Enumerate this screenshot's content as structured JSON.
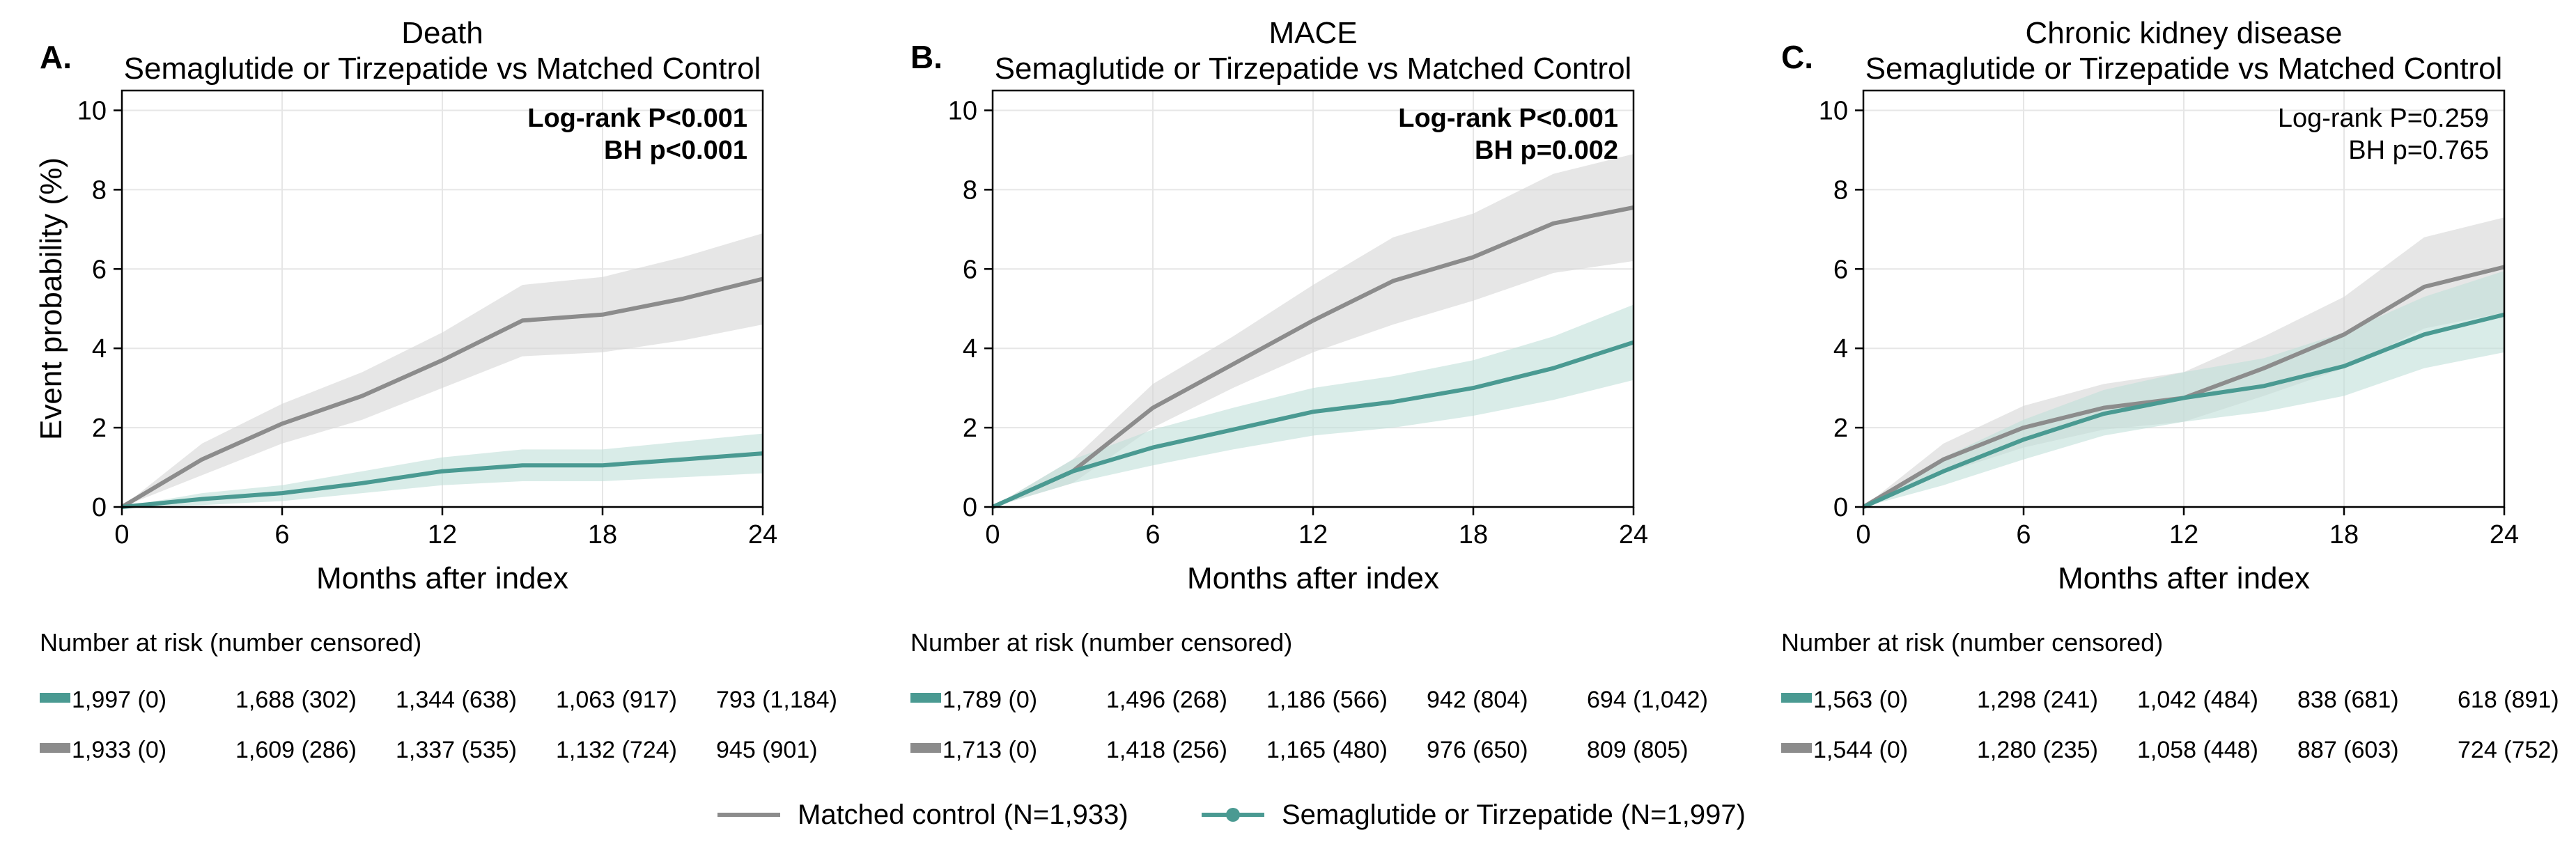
{
  "colors": {
    "control": "#8c8c8c",
    "control_band": "#d6d6d6",
    "treatment": "#4a9a92",
    "treatment_band": "#bfe0d9",
    "grid": "#e6e6e6"
  },
  "chart_data": [
    {
      "type": "line",
      "panel_letter": "A.",
      "title": "Death",
      "subtitle": "Semaglutide or Tirzepatide vs Matched Control",
      "xlabel": "Months after index",
      "ylabel": "Event probability (%)",
      "xlim": [
        0,
        24
      ],
      "ylim": [
        0,
        10.5
      ],
      "xticks": [
        0,
        6,
        12,
        18,
        24
      ],
      "yticks": [
        0,
        2,
        4,
        6,
        8,
        10
      ],
      "grid": true,
      "stats": [
        "Log-rank P<0.001",
        "BH p<0.001"
      ],
      "stats_bold": true,
      "series": [
        {
          "key": "control",
          "x": [
            0,
            3,
            6,
            9,
            12,
            15,
            18,
            21,
            24
          ],
          "y": [
            0,
            1.2,
            2.1,
            2.8,
            3.7,
            4.7,
            4.85,
            5.25,
            5.75
          ],
          "lower": [
            0,
            0.8,
            1.6,
            2.2,
            3.0,
            3.8,
            3.9,
            4.2,
            4.6
          ],
          "upper": [
            0,
            1.6,
            2.6,
            3.4,
            4.4,
            5.6,
            5.8,
            6.3,
            6.9
          ]
        },
        {
          "key": "treatment",
          "x": [
            0,
            3,
            6,
            9,
            12,
            15,
            18,
            21,
            24
          ],
          "y": [
            0,
            0.2,
            0.35,
            0.6,
            0.9,
            1.05,
            1.05,
            1.2,
            1.35
          ],
          "lower": [
            0,
            0.05,
            0.15,
            0.35,
            0.55,
            0.65,
            0.65,
            0.75,
            0.85
          ],
          "upper": [
            0,
            0.35,
            0.55,
            0.9,
            1.25,
            1.45,
            1.45,
            1.65,
            1.85
          ]
        }
      ],
      "risk_header": "Number at risk (number censored)",
      "risk_rows": [
        {
          "key": "treatment",
          "values": [
            "1,997 (0)",
            "1,688 (302)",
            "1,344 (638)",
            "1,063 (917)",
            "793 (1,184)"
          ]
        },
        {
          "key": "control",
          "values": [
            "1,933 (0)",
            "1,609 (286)",
            "1,337 (535)",
            "1,132 (724)",
            "945 (901)"
          ]
        }
      ]
    },
    {
      "type": "line",
      "panel_letter": "B.",
      "title": "MACE",
      "subtitle": "Semaglutide or Tirzepatide vs Matched Control",
      "xlabel": "Months after index",
      "ylabel": "",
      "xlim": [
        0,
        24
      ],
      "ylim": [
        0,
        10.5
      ],
      "xticks": [
        0,
        6,
        12,
        18,
        24
      ],
      "yticks": [
        0,
        2,
        4,
        6,
        8,
        10
      ],
      "grid": true,
      "stats": [
        "Log-rank P<0.001",
        "BH p=0.002"
      ],
      "stats_bold": true,
      "series": [
        {
          "key": "control",
          "x": [
            0,
            3,
            6,
            9,
            12,
            15,
            18,
            21,
            24
          ],
          "y": [
            0,
            0.9,
            2.5,
            3.6,
            4.7,
            5.7,
            6.3,
            7.15,
            7.55
          ],
          "lower": [
            0,
            0.6,
            2.0,
            3.0,
            3.9,
            4.6,
            5.2,
            5.9,
            6.2
          ],
          "upper": [
            0,
            1.2,
            3.1,
            4.3,
            5.6,
            6.8,
            7.4,
            8.4,
            8.9
          ]
        },
        {
          "key": "treatment",
          "x": [
            0,
            3,
            6,
            9,
            12,
            15,
            18,
            21,
            24
          ],
          "y": [
            0,
            0.9,
            1.5,
            1.95,
            2.4,
            2.65,
            3.0,
            3.5,
            4.15
          ],
          "lower": [
            0,
            0.6,
            1.05,
            1.45,
            1.8,
            2.0,
            2.3,
            2.7,
            3.2
          ],
          "upper": [
            0,
            1.2,
            1.95,
            2.5,
            3.0,
            3.3,
            3.7,
            4.3,
            5.1
          ]
        }
      ],
      "risk_header": "Number at risk (number censored)",
      "risk_rows": [
        {
          "key": "treatment",
          "values": [
            "1,789 (0)",
            "1,496 (268)",
            "1,186 (566)",
            "942 (804)",
            "694 (1,042)"
          ]
        },
        {
          "key": "control",
          "values": [
            "1,713 (0)",
            "1,418 (256)",
            "1,165 (480)",
            "976 (650)",
            "809 (805)"
          ]
        }
      ]
    },
    {
      "type": "line",
      "panel_letter": "C.",
      "title": "Chronic kidney disease",
      "subtitle": "Semaglutide or Tirzepatide vs Matched Control",
      "xlabel": "Months after index",
      "ylabel": "",
      "xlim": [
        0,
        24
      ],
      "ylim": [
        0,
        10.5
      ],
      "xticks": [
        0,
        6,
        12,
        18,
        24
      ],
      "yticks": [
        0,
        2,
        4,
        6,
        8,
        10
      ],
      "grid": true,
      "stats": [
        "Log-rank P=0.259",
        "BH p=0.765"
      ],
      "stats_bold": false,
      "series": [
        {
          "key": "control",
          "x": [
            0,
            3,
            6,
            9,
            12,
            15,
            18,
            21,
            24
          ],
          "y": [
            0,
            1.2,
            2.0,
            2.5,
            2.75,
            3.5,
            4.35,
            5.55,
            6.05
          ],
          "lower": [
            0,
            0.85,
            1.5,
            1.95,
            2.15,
            2.8,
            3.5,
            4.5,
            4.9
          ],
          "upper": [
            0,
            1.6,
            2.55,
            3.1,
            3.4,
            4.3,
            5.3,
            6.8,
            7.3
          ]
        },
        {
          "key": "treatment",
          "x": [
            0,
            3,
            6,
            9,
            12,
            15,
            18,
            21,
            24
          ],
          "y": [
            0,
            0.9,
            1.7,
            2.35,
            2.75,
            3.05,
            3.55,
            4.35,
            4.85
          ],
          "lower": [
            0,
            0.55,
            1.2,
            1.8,
            2.15,
            2.4,
            2.8,
            3.5,
            3.9
          ],
          "upper": [
            0,
            1.25,
            2.2,
            2.95,
            3.4,
            3.75,
            4.4,
            5.3,
            5.95
          ]
        }
      ],
      "risk_header": "Number at risk (number censored)",
      "risk_rows": [
        {
          "key": "treatment",
          "values": [
            "1,563 (0)",
            "1,298 (241)",
            "1,042 (484)",
            "838 (681)",
            "618 (891)"
          ]
        },
        {
          "key": "control",
          "values": [
            "1,544 (0)",
            "1,280 (235)",
            "1,058 (448)",
            "887 (603)",
            "724 (752)"
          ]
        }
      ]
    }
  ],
  "legend": {
    "control_label": "Matched control (N=1,933)",
    "treatment_label": "Semaglutide or Tirzepatide (N=1,997)"
  }
}
